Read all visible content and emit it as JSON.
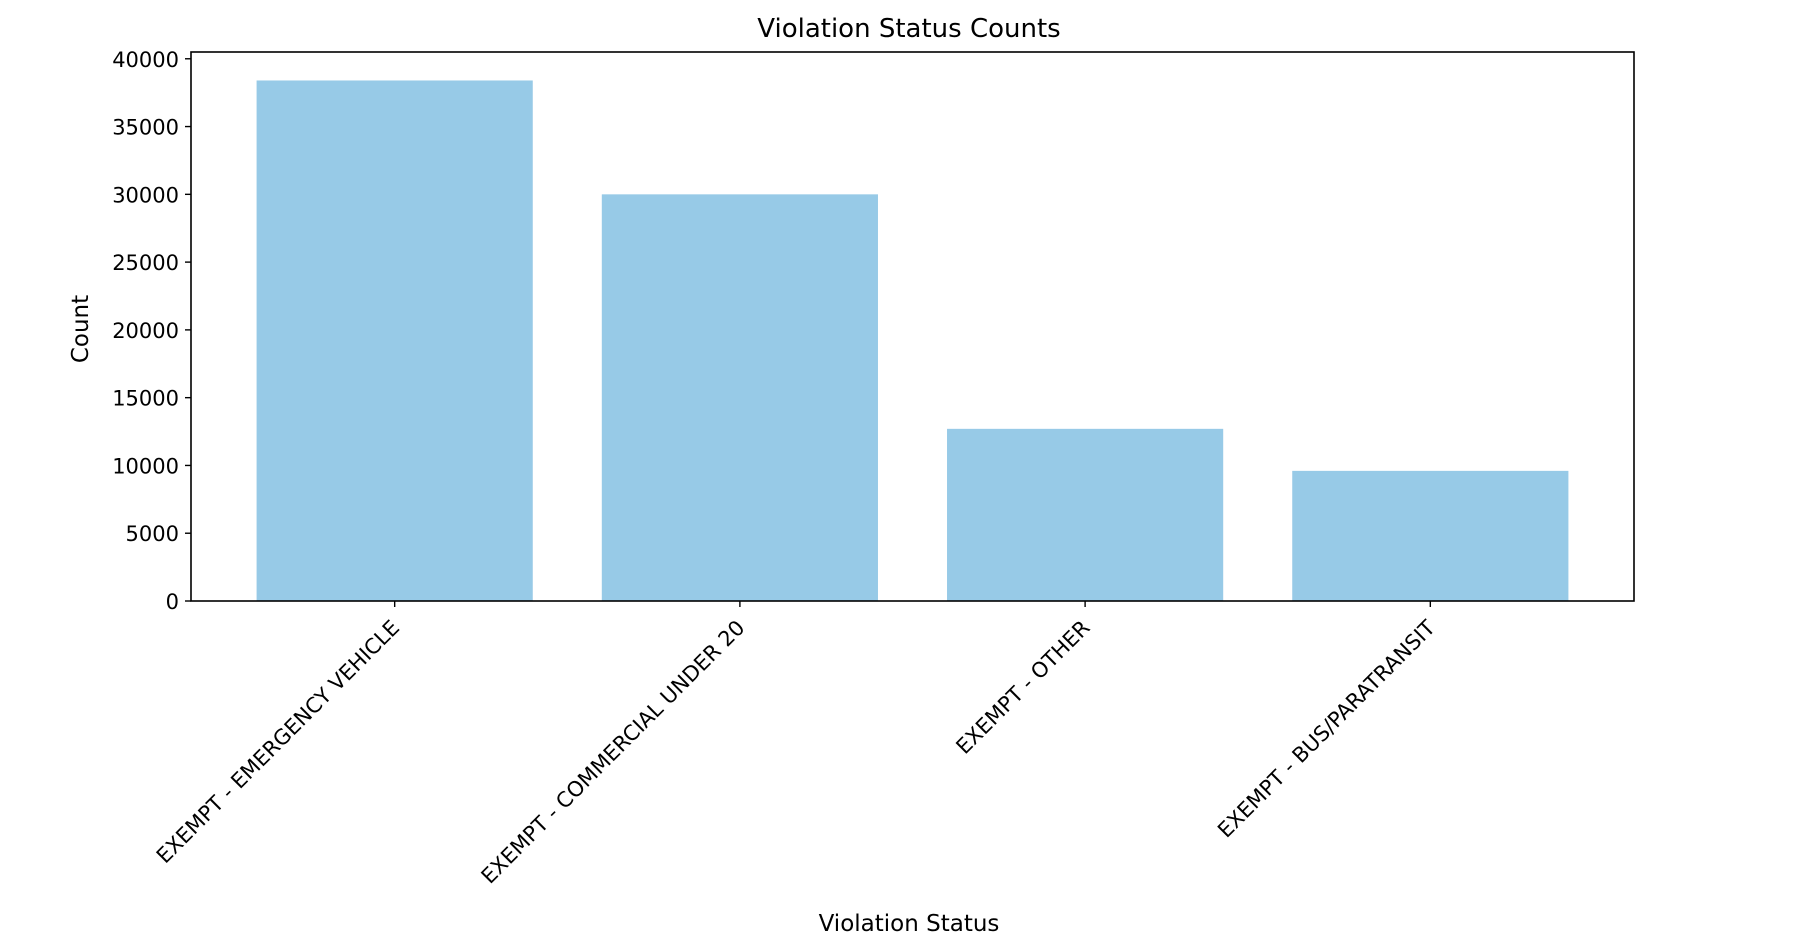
{
  "chart_data": {
    "type": "bar",
    "title": "Violation Status Counts",
    "xlabel": "Violation Status",
    "ylabel": "Count",
    "categories": [
      "EXEMPT - EMERGENCY VEHICLE",
      "EXEMPT - COMMERCIAL UNDER 20",
      "EXEMPT - OTHER",
      "EXEMPT - BUS/PARATRANSIT"
    ],
    "values": [
      38400,
      30000,
      12700,
      9600
    ],
    "ylim": [
      0,
      40500
    ],
    "yticks": [
      0,
      5000,
      10000,
      15000,
      20000,
      25000,
      30000,
      35000,
      40000
    ],
    "bar_color": "#97cae7",
    "grid": false,
    "legend": "none"
  }
}
